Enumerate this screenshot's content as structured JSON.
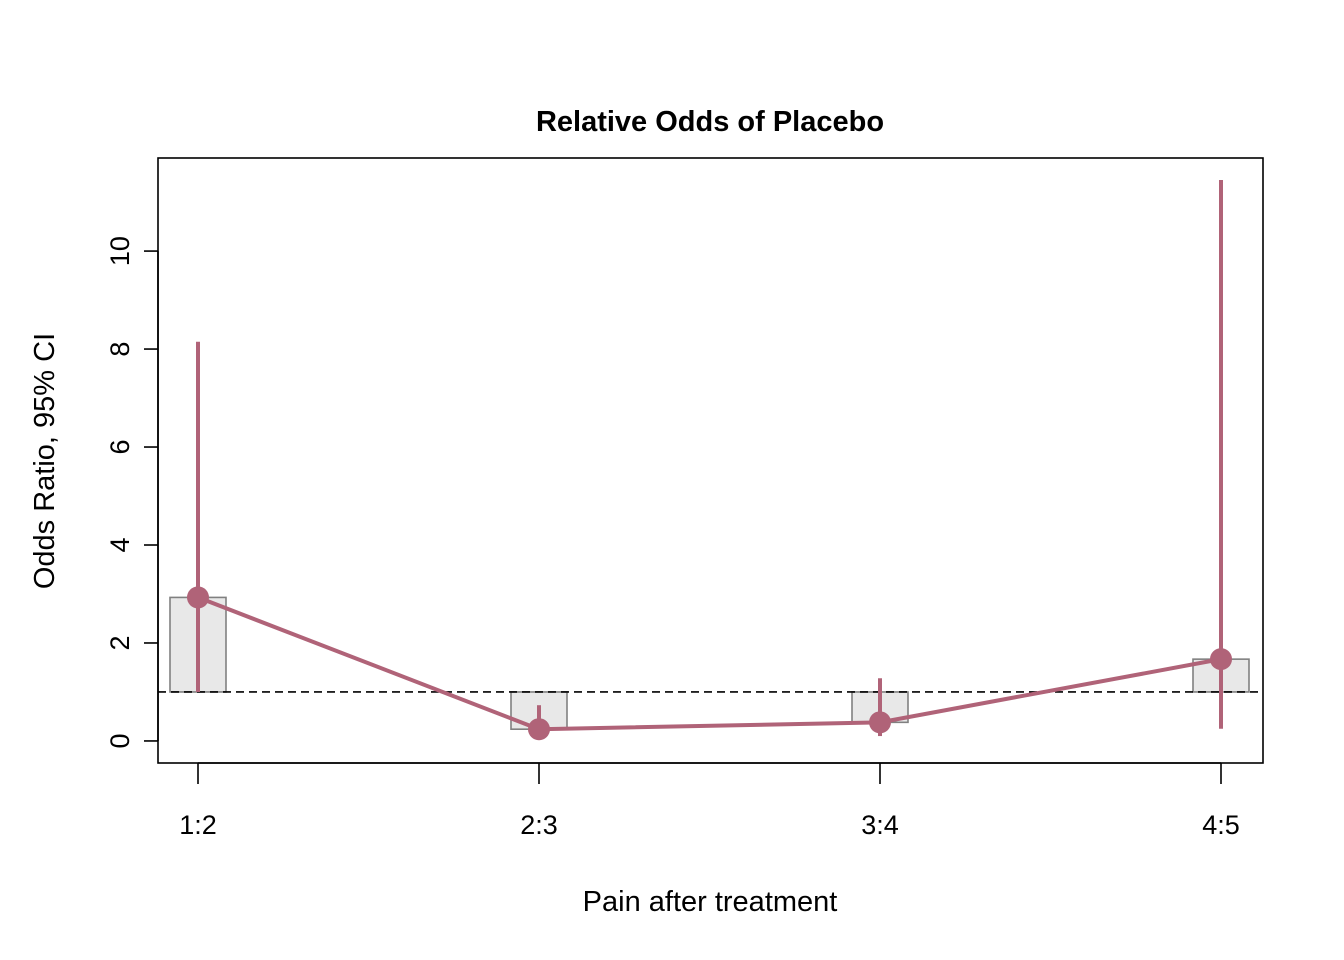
{
  "chart_data": {
    "type": "line",
    "title": "Relative Odds of Placebo",
    "xlabel": "Pain after treatment",
    "ylabel": "Odds Ratio, 95% CI",
    "categories": [
      "1:2",
      "2:3",
      "3:4",
      "4:5"
    ],
    "series": [
      {
        "values": [
          2.93,
          0.24,
          0.38,
          1.67
        ],
        "ci_low": [
          1.0,
          0.15,
          0.1,
          0.25
        ],
        "ci_high": [
          8.15,
          0.73,
          1.28,
          11.45
        ]
      }
    ],
    "reference_line": 1,
    "yticks": [
      0,
      2,
      4,
      6,
      8,
      10
    ],
    "ylim": [
      -0.45,
      11.9
    ],
    "grid": false,
    "colors": {
      "series": "#B06378",
      "bar_fill": "#E8E8E8",
      "bar_stroke": "#808080"
    }
  }
}
